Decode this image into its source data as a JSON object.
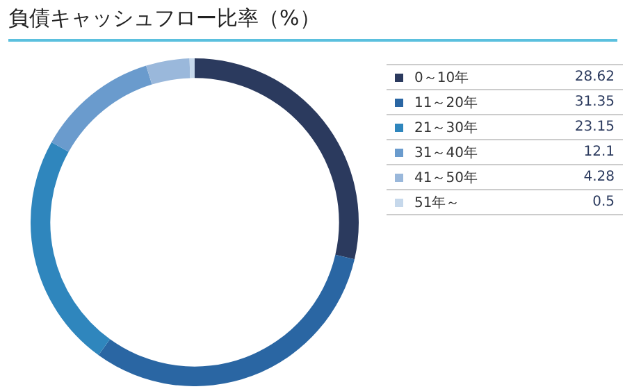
{
  "chart_data": {
    "type": "donut",
    "title": "負債キャッシュフロー比率（%）",
    "categories": [
      "0～10年",
      "11～20年",
      "21～30年",
      "31～40年",
      "41～50年",
      "51年～"
    ],
    "values": [
      28.62,
      31.35,
      23.15,
      12.1,
      4.28,
      0.5
    ],
    "colors": [
      "#2b3a5e",
      "#2a66a3",
      "#2f86bd",
      "#6a9bcd",
      "#9ab8db",
      "#c6d8eb"
    ],
    "data_labels": true,
    "legend": "right"
  }
}
